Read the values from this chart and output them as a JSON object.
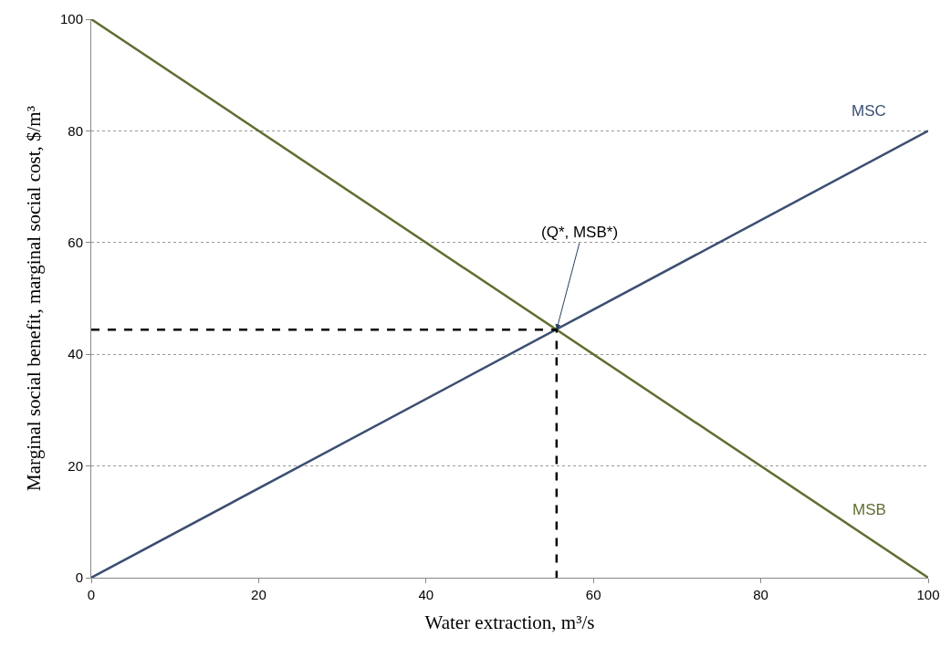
{
  "chart_data": {
    "type": "line",
    "xlabel": "Water extraction, m³/s",
    "ylabel": "Marginal social benefit, marginal social cost, $/m³",
    "series": [
      {
        "name": "MSC",
        "color": "#3b4e72",
        "x": [
          0,
          100
        ],
        "values": [
          0,
          80
        ]
      },
      {
        "name": "MSB",
        "color": "#5e6e30",
        "x": [
          0,
          100
        ],
        "values": [
          100,
          0
        ]
      },
      {
        "color": "#000000",
        "x": [
          0,
          55.6,
          55.6
        ],
        "values": [
          44.4,
          44.4,
          0
        ],
        "line_style": "dashed"
      }
    ],
    "annotations": [
      {
        "text": "(Q*, MSB*)",
        "x": 55.6,
        "y": 44.4
      }
    ],
    "xlim": [
      0,
      100
    ],
    "ylim": [
      0,
      100
    ],
    "xticks": [
      0,
      20,
      40,
      60,
      80,
      100
    ],
    "yticks": [
      0,
      20,
      40,
      60,
      80,
      100
    ],
    "grid": "y",
    "legend": false,
    "marker": "none",
    "line_style": "solid"
  }
}
